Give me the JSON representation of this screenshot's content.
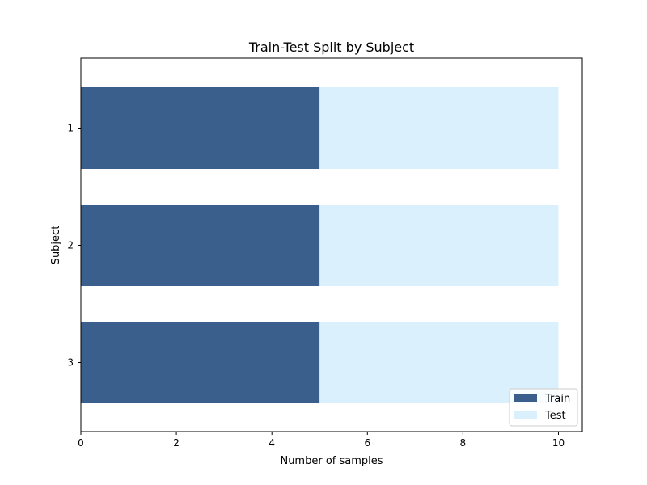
{
  "chart_data": {
    "type": "bar",
    "orientation": "horizontal",
    "stacked": true,
    "title": "Train-Test Split by Subject",
    "xlabel": "Number of samples",
    "ylabel": "Subject",
    "categories": [
      "1",
      "2",
      "3"
    ],
    "series": [
      {
        "name": "Train",
        "values": [
          5,
          5,
          5
        ],
        "color": "#3b5f8d"
      },
      {
        "name": "Test",
        "values": [
          5,
          5,
          5
        ],
        "color": "#dbf0fd"
      }
    ],
    "xlim": [
      0,
      10.5
    ],
    "xticks": [
      0,
      2,
      4,
      6,
      8,
      10
    ],
    "grid": false,
    "legend_position": "bottom-right"
  }
}
